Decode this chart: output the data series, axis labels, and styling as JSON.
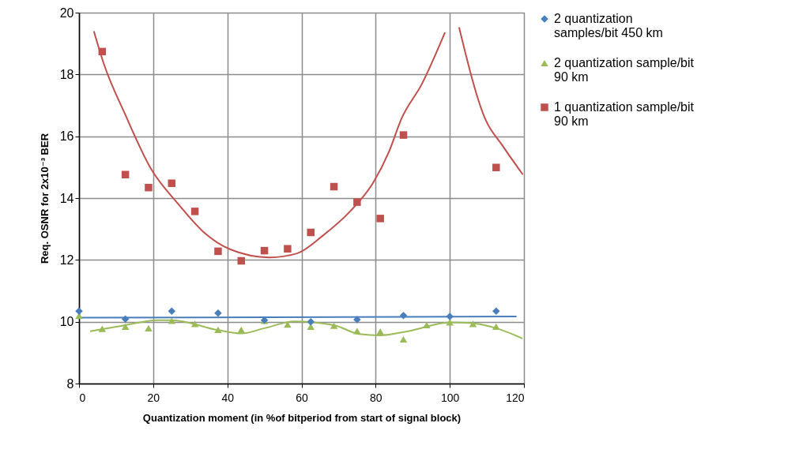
{
  "chart_data": {
    "type": "scatter",
    "xlabel": "Quantization moment (in %of  bitperiod from start of signal block)",
    "ylabel": "Req. OSNR for 2x10⁻³ BER",
    "xlim": [
      0,
      120
    ],
    "xticks": [
      0,
      20,
      40,
      60,
      80,
      100,
      120
    ],
    "ylim": [
      8,
      20
    ],
    "yticks": [
      8,
      10,
      12,
      14,
      16,
      18,
      20
    ],
    "grid": true,
    "legend": "right",
    "series": [
      {
        "name": "2 quantization samples/bit   450 km",
        "marker": "diamond",
        "color": "#4a7ebb",
        "x": [
          0,
          12.5,
          25,
          37.5,
          50,
          62.5,
          75,
          87.5,
          100,
          112.5
        ],
        "values": [
          10.34,
          10.09,
          10.34,
          10.28,
          10.05,
          10.0,
          10.07,
          10.2,
          10.17,
          10.34
        ]
      },
      {
        "type": "line",
        "color": "#4a7ebb",
        "x": [
          0,
          118
        ],
        "values": [
          10.13,
          10.17
        ]
      },
      {
        "name": "2 quantization sample/bit 90 km",
        "marker": "triangle",
        "color": "#9bbb59",
        "x": [
          0,
          6.25,
          12.5,
          18.75,
          25,
          31.25,
          37.5,
          43.75,
          50,
          56.25,
          62.5,
          68.75,
          75,
          81.25,
          87.5,
          93.75,
          100,
          106.25,
          112.5
        ],
        "values": [
          10.19,
          9.77,
          9.84,
          9.79,
          10.03,
          9.93,
          9.74,
          9.74,
          10.03,
          9.91,
          9.84,
          9.87,
          9.7,
          9.68,
          9.43,
          9.89,
          9.98,
          9.93,
          9.84
        ]
      },
      {
        "type": "line",
        "color": "#9bbb59",
        "x": [
          3,
          12.5,
          21.1,
          25,
          37.5,
          43.75,
          50,
          58.1,
          68.75,
          75.6,
          81.25,
          89,
          100,
          105.6,
          112.5,
          119.6
        ],
        "values": [
          9.69,
          9.89,
          10.05,
          10.05,
          9.73,
          9.62,
          9.79,
          10.01,
          9.89,
          9.6,
          9.56,
          9.7,
          9.98,
          9.96,
          9.79,
          9.46
        ]
      },
      {
        "name": "1 quantization sample/bit 90 km",
        "marker": "square",
        "color": "#c0504d",
        "x": [
          6.25,
          12.5,
          18.75,
          25,
          31.25,
          37.5,
          43.75,
          50,
          56.25,
          62.5,
          68.75,
          75,
          81.25,
          87.5,
          112.5
        ],
        "values": [
          18.74,
          14.76,
          14.34,
          14.48,
          13.57,
          12.28,
          11.97,
          12.3,
          12.36,
          12.89,
          14.37,
          13.87,
          13.34,
          16.04,
          14.99
        ]
      },
      {
        "type": "line",
        "color": "#c0504d",
        "x": [
          4,
          6.7,
          12.4,
          19.5,
          26.6,
          33.7,
          40.8,
          51.4,
          58.8,
          66,
          73.1,
          79.4,
          83.7,
          86.9,
          92.5,
          98.7
        ],
        "values": [
          19.4,
          18.34,
          16.72,
          14.93,
          13.83,
          12.89,
          12.34,
          12.08,
          12.21,
          12.81,
          13.57,
          14.51,
          15.53,
          16.55,
          17.7,
          19.36
        ]
      },
      {
        "type": "line",
        "color": "#c0504d",
        "x": [
          102.5,
          109.6,
          114.2,
          119.7
        ],
        "values": [
          19.53,
          16.55,
          15.7,
          14.76
        ]
      }
    ]
  }
}
